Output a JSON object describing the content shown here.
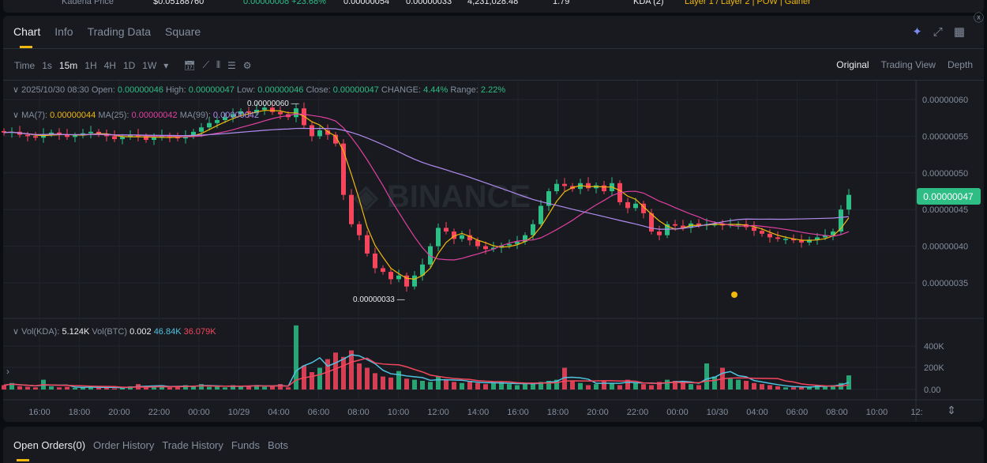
{
  "ticker": {
    "name": "Kadena Price",
    "price": "$0.05188760",
    "change": "0.00000008 +23.68%",
    "high": "0.00000054",
    "low": "0.00000033",
    "volume": "4,231,028.48",
    "value": "1.79",
    "tag": "KDA (2)",
    "categories": "Layer 1 / Layer 2 | POW | Gainer"
  },
  "tabs": [
    "Chart",
    "Info",
    "Trading Data",
    "Square"
  ],
  "intervals": [
    "Time",
    "1s",
    "15m",
    "1H",
    "4H",
    "1D",
    "1W"
  ],
  "active_interval": "15m",
  "views": [
    "Original",
    "Trading View",
    "Depth"
  ],
  "ohlc": {
    "date": "2025/10/30 08:30",
    "open_label": "Open:",
    "open": "0.00000046",
    "high_label": "High:",
    "high": "0.00000047",
    "low_label": "Low:",
    "low": "0.00000046",
    "close_label": "Close:",
    "close": "0.00000047",
    "change_label": "CHANGE:",
    "change": "4.44%",
    "range_label": "Range:",
    "range": "2.22%"
  },
  "ma": {
    "ma7_label": "MA(7):",
    "ma7": "0.00000044",
    "ma25_label": "MA(25):",
    "ma25": "0.00000042",
    "ma99_label": "MA(99):",
    "ma99": "0.00000042"
  },
  "vol": {
    "kda_label": "Vol(KDA):",
    "kda": "5.124K",
    "btc_label": "Vol(BTC)",
    "btc": "0.002",
    "ma1": "46.84K",
    "ma2": "36.079K"
  },
  "colors": {
    "up": "#2ebd85",
    "down": "#f6465d",
    "ma7": "#f0b90b",
    "ma25": "#e040a0",
    "ma99": "#b18cf0",
    "accent": "#f0b90b"
  },
  "chart_data": {
    "type": "candlestick",
    "price_ticks": [
      "0.00000060",
      "0.00000055",
      "0.00000050",
      "0.00000045",
      "0.00000040",
      "0.00000035"
    ],
    "current_price": "0.00000047",
    "max_label": "0.00000060",
    "min_label": "0.00000033",
    "volume_ticks": [
      "400K",
      "200K",
      "0.00"
    ],
    "time_ticks": [
      "16:00",
      "18:00",
      "20:00",
      "22:00",
      "00:00",
      "10/29",
      "04:00",
      "06:00",
      "08:00",
      "10:00",
      "12:00",
      "14:00",
      "16:00",
      "18:00",
      "20:00",
      "22:00",
      "00:00",
      "10/30",
      "04:00",
      "06:00",
      "08:00",
      "10:00",
      "12:"
    ],
    "closes_e8": [
      55.5,
      55.6,
      55.2,
      55.0,
      54.8,
      55.3,
      55.5,
      55.2,
      54.9,
      55.1,
      55.4,
      55.6,
      55.3,
      55.0,
      54.6,
      54.9,
      55.2,
      55.0,
      54.5,
      54.8,
      55.1,
      54.9,
      54.7,
      55.0,
      55.6,
      56.2,
      56.8,
      57.2,
      57.6,
      58.0,
      58.4,
      58.2,
      58.6,
      58.9,
      58.3,
      58.0,
      57.6,
      58.8,
      56.5,
      55.0,
      55.8,
      55.2,
      54.0,
      47.0,
      43.0,
      41.5,
      39.0,
      37.0,
      36.5,
      35.5,
      36.0,
      34.5,
      36.0,
      37.5,
      40.0,
      42.5,
      42.0,
      41.0,
      41.5,
      40.8,
      40.0,
      39.6,
      39.8,
      40.1,
      40.3,
      40.6,
      41.5,
      43.0,
      45.5,
      47.5,
      48.5,
      48.2,
      47.8,
      48.6,
      47.9,
      48.3,
      47.5,
      48.6,
      46.0,
      45.2,
      45.8,
      44.5,
      42.0,
      41.5,
      43.0,
      42.8,
      42.5,
      43.1,
      42.9,
      43.0,
      43.0,
      42.9,
      43.0,
      43.0,
      42.6,
      42.1,
      41.7,
      41.2,
      41.0,
      41.0,
      40.8,
      40.5,
      40.9,
      41.2,
      41.5,
      42.0,
      45.0,
      47.0
    ],
    "volumes_k": [
      40,
      60,
      30,
      25,
      20,
      90,
      30,
      20,
      25,
      15,
      20,
      30,
      15,
      20,
      10,
      20,
      30,
      50,
      20,
      30,
      40,
      20,
      25,
      40,
      30,
      50,
      25,
      30,
      20,
      40,
      30,
      35,
      40,
      25,
      30,
      50,
      20,
      590,
      220,
      160,
      200,
      280,
      340,
      300,
      360,
      240,
      200,
      150,
      120,
      110,
      170,
      100,
      90,
      80,
      70,
      120,
      90,
      70,
      60,
      80,
      60,
      50,
      60,
      70,
      50,
      40,
      60,
      60,
      70,
      80,
      90,
      200,
      80,
      60,
      40,
      50,
      80,
      60,
      40,
      90,
      60,
      50,
      40,
      70,
      90,
      80,
      60,
      50,
      40,
      240,
      120,
      200,
      100,
      90,
      80,
      60,
      50,
      40,
      30,
      20,
      20,
      30,
      20,
      40,
      30,
      40,
      60,
      130
    ]
  },
  "bottom_tabs": [
    "Open Orders(0)",
    "Order History",
    "Trade History",
    "Funds",
    "Bots"
  ],
  "watermark": "BINANCE"
}
